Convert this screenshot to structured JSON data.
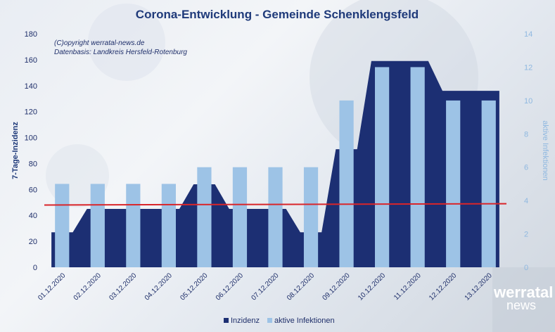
{
  "chart_data": {
    "type": "bar",
    "title": "Corona-Entwicklung - Gemeinde Schenklengsfeld",
    "annotations": [
      "(C)opyright werratal-news.de",
      "Datenbasis: Landkreis Hersfeld-Rotenburg"
    ],
    "categories": [
      "01.12.2020",
      "02.12.2020",
      "03.12.2020",
      "04.12.2020",
      "05.12.2020",
      "06.12.2020",
      "07.12.2020",
      "08.12.2020",
      "09.12.2020",
      "10.12.2020",
      "11.12.2020",
      "12.12.2020",
      "13.12.2020"
    ],
    "ylabel": "7-Tage-Inzidenz",
    "y2label": "aktive Infektionen",
    "ylim": [
      0,
      180
    ],
    "y2lim": [
      0,
      14
    ],
    "yticks": [
      0,
      20,
      40,
      60,
      80,
      100,
      120,
      140,
      160,
      180
    ],
    "y2ticks": [
      0,
      2,
      4,
      6,
      8,
      10,
      12,
      14
    ],
    "series": [
      {
        "name": "Inzidenz",
        "type": "area",
        "axis": "left",
        "color": "#1c2f73",
        "values": [
          27,
          45,
          45,
          45,
          64,
          45,
          45,
          27,
          91,
          159,
          159,
          136,
          136
        ]
      },
      {
        "name": "aktive Infektionen",
        "type": "bar",
        "axis": "right",
        "color": "#9dc3e6",
        "values": [
          5,
          5,
          5,
          5,
          6,
          6,
          6,
          6,
          10,
          12,
          12,
          10,
          10
        ]
      }
    ],
    "trendline": {
      "color": "#d9252a",
      "start": 48,
      "end": 49
    },
    "legend": "bottom",
    "grid": false
  },
  "logo": {
    "line1": "werratal",
    "line2": "news"
  }
}
